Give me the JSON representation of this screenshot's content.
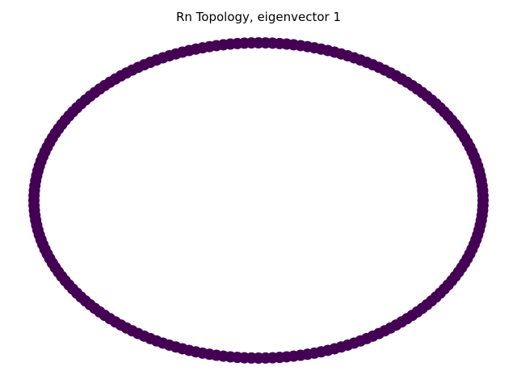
{
  "figure": {
    "title": "Rn Topology, eigenvector 1",
    "node_color": "#440154",
    "edge_color": "#440154"
  },
  "graph": {
    "topology": "ring",
    "node_count": 200,
    "eigenvector_index": 1
  }
}
